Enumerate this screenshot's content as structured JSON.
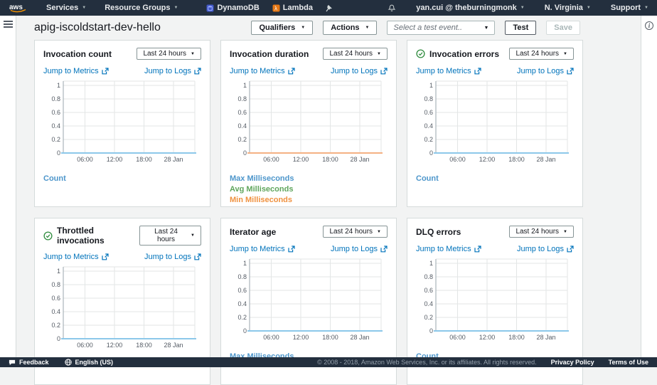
{
  "nav": {
    "logo": "aws",
    "services": "Services",
    "resource_groups": "Resource Groups",
    "dynamodb": "DynamoDB",
    "lambda": "Lambda",
    "user": "yan.cui @ theburningmonk",
    "region": "N. Virginia",
    "support": "Support"
  },
  "header": {
    "title": "apig-iscoldstart-dev-hello",
    "qualifiers_label": "Qualifiers",
    "actions_label": "Actions",
    "test_event_placeholder": "Select a test event..",
    "test_label": "Test",
    "save_label": "Save"
  },
  "charts": [
    {
      "title": "Invocation count",
      "has_check": false,
      "range_label": "Last 24 hours",
      "metrics_label": "Jump to Metrics",
      "logs_label": "Jump to Logs",
      "baseline_color": "#8cc8ea",
      "legend": [
        {
          "label": "Count",
          "color": "#4d96cb"
        }
      ]
    },
    {
      "title": "Invocation duration",
      "has_check": false,
      "range_label": "Last 24 hours",
      "metrics_label": "Jump to Metrics",
      "logs_label": "Jump to Logs",
      "baseline_color": "#f4b183",
      "legend": [
        {
          "label": "Max Milliseconds",
          "color": "#4d96cb"
        },
        {
          "label": "Avg Milliseconds",
          "color": "#5fa55c"
        },
        {
          "label": "Min Milliseconds",
          "color": "#ef913f"
        }
      ]
    },
    {
      "title": "Invocation errors",
      "has_check": true,
      "range_label": "Last 24 hours",
      "metrics_label": "Jump to Metrics",
      "logs_label": "Jump to Logs",
      "baseline_color": "#8cc8ea",
      "legend": [
        {
          "label": "Count",
          "color": "#4d96cb"
        }
      ]
    },
    {
      "title": "Throttled invocations",
      "has_check": true,
      "range_label": "Last 24 hours",
      "metrics_label": "Jump to Metrics",
      "logs_label": "Jump to Logs",
      "baseline_color": "#8cc8ea",
      "legend": [
        {
          "label": "Count",
          "color": "#4d96cb"
        }
      ]
    },
    {
      "title": "Iterator age",
      "has_check": false,
      "range_label": "Last 24 hours",
      "metrics_label": "Jump to Metrics",
      "logs_label": "Jump to Logs",
      "baseline_color": "#8cc8ea",
      "legend": [
        {
          "label": "Max Milliseconds",
          "color": "#4d96cb"
        }
      ]
    },
    {
      "title": "DLQ errors",
      "has_check": false,
      "range_label": "Last 24 hours",
      "metrics_label": "Jump to Metrics",
      "logs_label": "Jump to Logs",
      "baseline_color": "#8cc8ea",
      "legend": [
        {
          "label": "Count",
          "color": "#4d96cb"
        }
      ]
    }
  ],
  "chart_data": [
    {
      "type": "line",
      "title": "Invocation count",
      "x_ticks": [
        "06:00",
        "12:00",
        "18:00",
        "28 Jan"
      ],
      "y_ticks": [
        0,
        0.2,
        0.4,
        0.6,
        0.8,
        1
      ],
      "ylim": [
        0,
        1.05
      ],
      "grid": true,
      "legend_position": "bottom",
      "series": [
        {
          "name": "Count",
          "values": [
            0,
            0,
            0,
            0,
            0
          ]
        }
      ]
    },
    {
      "type": "line",
      "title": "Invocation duration",
      "x_ticks": [
        "06:00",
        "12:00",
        "18:00",
        "28 Jan"
      ],
      "y_ticks": [
        0,
        0.2,
        0.4,
        0.6,
        0.8,
        1
      ],
      "ylim": [
        0,
        1.05
      ],
      "grid": true,
      "legend_position": "bottom",
      "series": [
        {
          "name": "Max Milliseconds",
          "values": [
            0,
            0,
            0,
            0,
            0
          ]
        },
        {
          "name": "Avg Milliseconds",
          "values": [
            0,
            0,
            0,
            0,
            0
          ]
        },
        {
          "name": "Min Milliseconds",
          "values": [
            0,
            0,
            0,
            0,
            0
          ]
        }
      ]
    },
    {
      "type": "line",
      "title": "Invocation errors",
      "x_ticks": [
        "06:00",
        "12:00",
        "18:00",
        "28 Jan"
      ],
      "y_ticks": [
        0,
        0.2,
        0.4,
        0.6,
        0.8,
        1
      ],
      "ylim": [
        0,
        1.05
      ],
      "grid": true,
      "legend_position": "bottom",
      "series": [
        {
          "name": "Count",
          "values": [
            0,
            0,
            0,
            0,
            0
          ]
        }
      ]
    },
    {
      "type": "line",
      "title": "Throttled invocations",
      "x_ticks": [
        "06:00",
        "12:00",
        "18:00",
        "28 Jan"
      ],
      "y_ticks": [
        0,
        0.2,
        0.4,
        0.6,
        0.8,
        1
      ],
      "ylim": [
        0,
        1.05
      ],
      "grid": true,
      "legend_position": "bottom",
      "series": [
        {
          "name": "Count",
          "values": [
            0,
            0,
            0,
            0,
            0
          ]
        }
      ]
    },
    {
      "type": "line",
      "title": "Iterator age",
      "x_ticks": [
        "06:00",
        "12:00",
        "18:00",
        "28 Jan"
      ],
      "y_ticks": [
        0,
        0.2,
        0.4,
        0.6,
        0.8,
        1
      ],
      "ylim": [
        0,
        1.05
      ],
      "grid": true,
      "legend_position": "bottom",
      "series": [
        {
          "name": "Max Milliseconds",
          "values": [
            0,
            0,
            0,
            0,
            0
          ]
        }
      ]
    },
    {
      "type": "line",
      "title": "DLQ errors",
      "x_ticks": [
        "06:00",
        "12:00",
        "18:00",
        "28 Jan"
      ],
      "y_ticks": [
        0,
        0.2,
        0.4,
        0.6,
        0.8,
        1
      ],
      "ylim": [
        0,
        1.05
      ],
      "grid": true,
      "legend_position": "bottom",
      "series": [
        {
          "name": "Count",
          "values": [
            0,
            0,
            0,
            0,
            0
          ]
        }
      ]
    }
  ],
  "footer": {
    "feedback": "Feedback",
    "language": "English (US)",
    "copyright": "© 2008 - 2018, Amazon Web Services, Inc. or its affiliates. All rights reserved.",
    "privacy": "Privacy Policy",
    "terms": "Terms of Use"
  },
  "colors": {
    "nav_bg": "#232f3e",
    "page_bg": "#f2f3f3",
    "link_blue": "#0073bb",
    "success_green": "#2e8b3d",
    "series_blue": "#4d96cb",
    "series_green": "#5fa55c",
    "series_orange": "#ef913f",
    "aws_orange": "#f79400"
  }
}
